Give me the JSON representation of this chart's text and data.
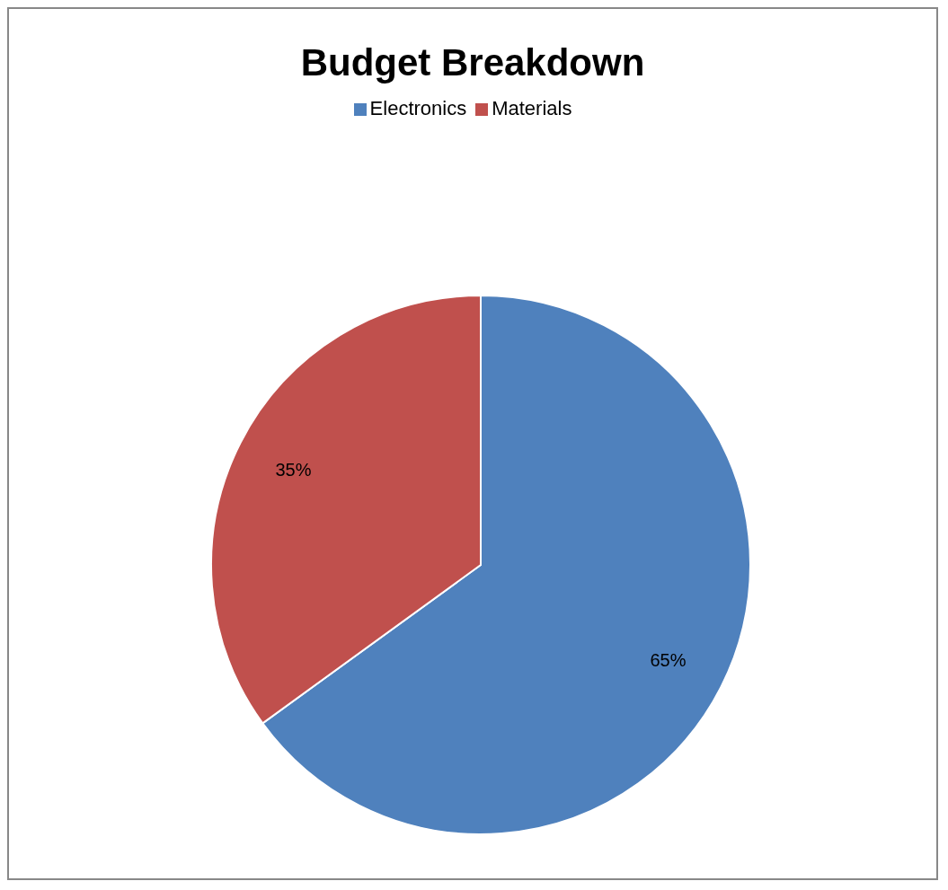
{
  "chart_data": {
    "type": "pie",
    "title": "Budget Breakdown",
    "categories": [
      "Electronics",
      "Materials"
    ],
    "values": [
      65,
      35
    ],
    "colors": [
      "#4f81bd",
      "#c0504d"
    ],
    "value_labels": [
      "65%",
      "35%"
    ],
    "legend": "top"
  }
}
